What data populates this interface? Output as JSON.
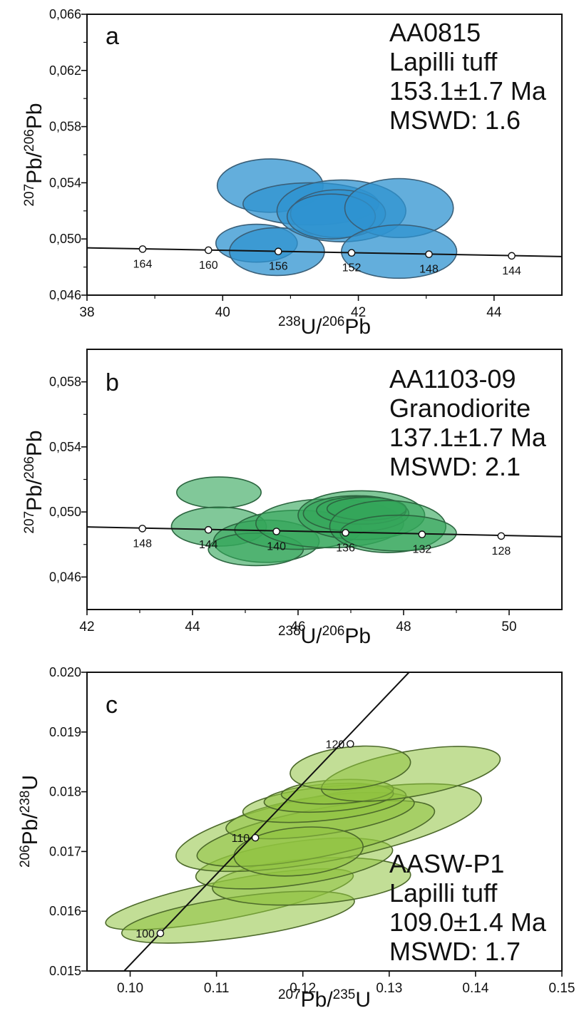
{
  "colors": {
    "panel_a_fill": "#2f93d0",
    "panel_a_stroke": "#3a5f78",
    "panel_b_fill": "#33a75a",
    "panel_b_stroke": "#2c6640",
    "panel_c_fill": "#8fc23f",
    "panel_c_stroke": "#4d6a2b",
    "axis": "#111111"
  },
  "chart_data": [
    {
      "type": "scatter",
      "panel": "a",
      "info": [
        "AA0815",
        "Lapilli tuff",
        "153.1±1.7 Ma",
        "MSWD: 1.6"
      ],
      "xlabel": {
        "sup1": "238",
        "main1": "U/",
        "sup2": "206",
        "main2": "Pb"
      },
      "ylabel": {
        "sup1": "207",
        "main1": "Pb/",
        "sup2": "206",
        "main2": "Pb"
      },
      "xlim": [
        38,
        45
      ],
      "ylim": [
        0.046,
        0.066
      ],
      "xticks": [
        38,
        40,
        42,
        44
      ],
      "xtick_labels": [
        "38",
        "40",
        "42",
        "44"
      ],
      "yticks": [
        0.046,
        0.05,
        0.054,
        0.058,
        0.062,
        0.066
      ],
      "ytick_labels": [
        "0,046",
        "0,050",
        "0,054",
        "0,058",
        "0,062",
        "0,066"
      ],
      "ellipses": [
        {
          "cx": 40.7,
          "cy": 0.0538,
          "rx": 0.78,
          "ry": 0.0019,
          "rot": 0
        },
        {
          "cx": 40.5,
          "cy": 0.0497,
          "rx": 0.6,
          "ry": 0.00135,
          "rot": 0
        },
        {
          "cx": 40.8,
          "cy": 0.0491,
          "rx": 0.7,
          "ry": 0.0017,
          "rot": 0
        },
        {
          "cx": 41.3,
          "cy": 0.0525,
          "rx": 1.0,
          "ry": 0.0015,
          "rot": 0
        },
        {
          "cx": 41.75,
          "cy": 0.052,
          "rx": 0.95,
          "ry": 0.0022,
          "rot": 0
        },
        {
          "cx": 41.7,
          "cy": 0.0518,
          "rx": 0.7,
          "ry": 0.0017,
          "rot": 0
        },
        {
          "cx": 41.6,
          "cy": 0.0516,
          "rx": 0.65,
          "ry": 0.0016,
          "rot": 0
        },
        {
          "cx": 42.6,
          "cy": 0.0522,
          "rx": 0.8,
          "ry": 0.0021,
          "rot": 0
        },
        {
          "cx": 42.6,
          "cy": 0.0491,
          "rx": 0.85,
          "ry": 0.0019,
          "rot": 0
        }
      ],
      "concordia": {
        "x1": 38,
        "y1": 0.04937,
        "x2": 45,
        "y2": 0.04875,
        "points": [
          {
            "x": 38.82,
            "y": 0.04928,
            "label": "164"
          },
          {
            "x": 39.79,
            "y": 0.0492,
            "label": "160"
          },
          {
            "x": 40.82,
            "y": 0.04911,
            "label": "156"
          },
          {
            "x": 41.9,
            "y": 0.04901,
            "label": "152"
          },
          {
            "x": 43.04,
            "y": 0.04891,
            "label": "148"
          },
          {
            "x": 44.26,
            "y": 0.0488,
            "label": "144"
          }
        ]
      }
    },
    {
      "type": "scatter",
      "panel": "b",
      "info": [
        "AA1103-09",
        "Granodiorite",
        "137.1±1.7 Ma",
        "MSWD: 2.1"
      ],
      "xlabel": {
        "sup1": "238",
        "main1": "U/",
        "sup2": "206",
        "main2": "Pb"
      },
      "ylabel": {
        "sup1": "207",
        "main1": "Pb/",
        "sup2": "206",
        "main2": "Pb"
      },
      "xlim": [
        42,
        51
      ],
      "ylim": [
        0.044,
        0.06
      ],
      "xticks": [
        42,
        44,
        46,
        48,
        50
      ],
      "xtick_labels": [
        "42",
        "44",
        "46",
        "48",
        "50"
      ],
      "yticks": [
        0.046,
        0.05,
        0.054,
        0.058
      ],
      "ytick_labels": [
        "0,046",
        "0,050",
        "0,054",
        "0,058"
      ],
      "ellipses": [
        {
          "cx": 44.5,
          "cy": 0.0512,
          "rx": 0.8,
          "ry": 0.00095,
          "rot": 0
        },
        {
          "cx": 44.5,
          "cy": 0.0491,
          "rx": 0.9,
          "ry": 0.0012,
          "rot": 0
        },
        {
          "cx": 45.4,
          "cy": 0.0482,
          "rx": 1.0,
          "ry": 0.0013,
          "rot": 0
        },
        {
          "cx": 45.2,
          "cy": 0.0477,
          "rx": 0.9,
          "ry": 0.001,
          "rot": 0
        },
        {
          "cx": 46.0,
          "cy": 0.0489,
          "rx": 1.2,
          "ry": 0.0012,
          "rot": 0
        },
        {
          "cx": 46.6,
          "cy": 0.0493,
          "rx": 1.4,
          "ry": 0.0015,
          "rot": 0
        },
        {
          "cx": 47.2,
          "cy": 0.0498,
          "rx": 1.2,
          "ry": 0.0015,
          "rot": 0
        },
        {
          "cx": 47.1,
          "cy": 0.0499,
          "rx": 1.0,
          "ry": 0.0011,
          "rot": 0
        },
        {
          "cx": 47.2,
          "cy": 0.0501,
          "rx": 0.85,
          "ry": 0.00085,
          "rot": 0
        },
        {
          "cx": 47.3,
          "cy": 0.0502,
          "rx": 0.75,
          "ry": 0.0007,
          "rot": 0
        },
        {
          "cx": 47.7,
          "cy": 0.0491,
          "rx": 1.1,
          "ry": 0.0016,
          "rot": 0
        },
        {
          "cx": 47.9,
          "cy": 0.0487,
          "rx": 1.1,
          "ry": 0.0011,
          "rot": 0
        }
      ],
      "concordia": {
        "x1": 42,
        "y1": 0.04908,
        "x2": 51,
        "y2": 0.04848,
        "points": [
          {
            "x": 43.05,
            "y": 0.04898,
            "label": "148"
          },
          {
            "x": 44.3,
            "y": 0.0489,
            "label": "144"
          },
          {
            "x": 45.59,
            "y": 0.0488,
            "label": "140"
          },
          {
            "x": 46.9,
            "y": 0.04872,
            "label": "136"
          },
          {
            "x": 48.35,
            "y": 0.04862,
            "label": "132"
          },
          {
            "x": 49.85,
            "y": 0.04852,
            "label": "128"
          }
        ]
      }
    },
    {
      "type": "scatter",
      "panel": "c",
      "info": [
        "AASW-P1",
        "Lapilli tuff",
        "109.0±1.4 Ma",
        "MSWD: 1.7"
      ],
      "xlabel": {
        "sup1": "207",
        "main1": "Pb/",
        "sup2": "235",
        "main2": "U"
      },
      "ylabel": {
        "sup1": "206",
        "main1": "Pb/",
        "sup2": "238",
        "main2": "U"
      },
      "xlim": [
        0.095,
        0.15
      ],
      "ylim": [
        0.015,
        0.02
      ],
      "xticks": [
        0.1,
        0.11,
        0.12,
        0.13,
        0.14,
        0.15
      ],
      "xtick_labels": [
        "0.10",
        "0.11",
        "0.12",
        "0.13",
        "0.14",
        "0.15"
      ],
      "yticks": [
        0.015,
        0.016,
        0.017,
        0.018,
        0.019,
        0.02
      ],
      "ytick_labels": [
        "0.015",
        "0.016",
        "0.017",
        "0.018",
        "0.019",
        "0.020"
      ],
      "ellipses": [
        {
          "cx": 0.1115,
          "cy": 0.0162,
          "rx": 0.0146,
          "ry": 0.00032,
          "rot": -11
        },
        {
          "cx": 0.1125,
          "cy": 0.0159,
          "rx": 0.0136,
          "ry": 0.00034,
          "rot": -8
        },
        {
          "cx": 0.121,
          "cy": 0.0165,
          "rx": 0.0115,
          "ry": 0.00038,
          "rot": -4
        },
        {
          "cx": 0.119,
          "cy": 0.0168,
          "rx": 0.0115,
          "ry": 0.00036,
          "rot": -8
        },
        {
          "cx": 0.123,
          "cy": 0.0174,
          "rx": 0.018,
          "ry": 0.00055,
          "rot": -11
        },
        {
          "cx": 0.1215,
          "cy": 0.0173,
          "rx": 0.014,
          "ry": 0.0004,
          "rot": -11
        },
        {
          "cx": 0.122,
          "cy": 0.0176,
          "rx": 0.011,
          "ry": 0.00032,
          "rot": -8
        },
        {
          "cx": 0.1225,
          "cy": 0.0178,
          "rx": 0.0095,
          "ry": 0.00028,
          "rot": -6
        },
        {
          "cx": 0.123,
          "cy": 0.0179,
          "rx": 0.0075,
          "ry": 0.00023,
          "rot": -4
        },
        {
          "cx": 0.124,
          "cy": 0.018,
          "rx": 0.0065,
          "ry": 0.0002,
          "rot": -3
        },
        {
          "cx": 0.1325,
          "cy": 0.0183,
          "rx": 0.0105,
          "ry": 0.00038,
          "rot": -10
        },
        {
          "cx": 0.1255,
          "cy": 0.0184,
          "rx": 0.007,
          "ry": 0.00035,
          "rot": -6
        },
        {
          "cx": 0.1195,
          "cy": 0.017,
          "rx": 0.0075,
          "ry": 0.0004,
          "rot": -5
        }
      ],
      "concordia": {
        "x1": 0.0993,
        "y1": 0.015,
        "x2": 0.1323,
        "y2": 0.02,
        "points": [
          {
            "x": 0.1035,
            "y": 0.01563,
            "label": "100"
          },
          {
            "x": 0.1145,
            "y": 0.01723,
            "label": "110"
          },
          {
            "x": 0.1255,
            "y": 0.0188,
            "label": "120"
          }
        ]
      }
    }
  ]
}
